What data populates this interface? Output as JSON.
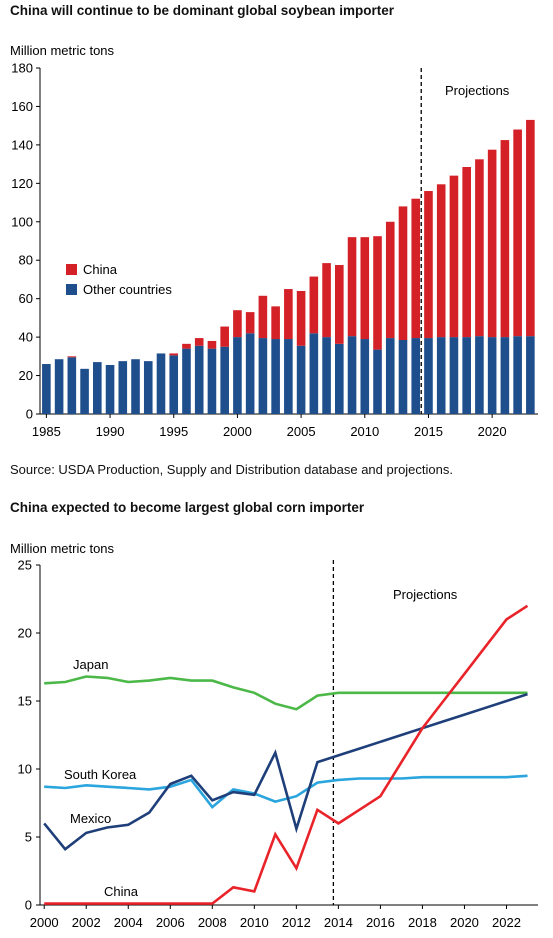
{
  "source_note": "Source: USDA Production, Supply and Distribution database and projections.",
  "colors": {
    "china": "#d42027",
    "other": "#1f4e8c",
    "japan": "#4cb848",
    "south_korea": "#2aa5dd",
    "mexico": "#1f3f7a",
    "china_line": "#e8232a"
  },
  "chart_data": [
    {
      "type": "bar",
      "stacked": true,
      "title": "China will continue to be dominant global soybean importer",
      "ylabel": "Million metric tons",
      "ylim": [
        0,
        180
      ],
      "yticks": [
        0,
        20,
        40,
        60,
        80,
        100,
        120,
        140,
        160,
        180
      ],
      "xticks": [
        "1985",
        "1990",
        "1995",
        "2000",
        "2005",
        "2010",
        "2015",
        "2020"
      ],
      "categories": [
        1985,
        1986,
        1987,
        1988,
        1989,
        1990,
        1991,
        1992,
        1993,
        1994,
        1995,
        1996,
        1997,
        1998,
        1999,
        2000,
        2001,
        2002,
        2003,
        2004,
        2005,
        2006,
        2007,
        2008,
        2009,
        2010,
        2011,
        2012,
        2013,
        2014,
        2015,
        2016,
        2017,
        2018,
        2019,
        2020,
        2021,
        2022,
        2023
      ],
      "series": [
        {
          "name": "Other countries",
          "values": [
            26,
            28.5,
            29.5,
            23.5,
            27,
            25.5,
            27.5,
            28.5,
            27.5,
            31.5,
            30.5,
            34,
            35.5,
            34,
            35,
            40,
            42,
            39.5,
            39,
            39,
            35.5,
            42,
            40,
            36.5,
            40.5,
            39,
            33.5,
            39.5,
            38.5,
            39.5,
            39.5,
            40,
            40,
            40,
            40.5,
            40,
            40,
            40.5,
            40.5
          ]
        },
        {
          "name": "China",
          "values": [
            0,
            0,
            0.5,
            0,
            0,
            0,
            0,
            0,
            0,
            0,
            1,
            2.5,
            4,
            4,
            10.5,
            14,
            11,
            22,
            17,
            26,
            28.5,
            29.5,
            38.5,
            41,
            51.5,
            53,
            59,
            60.5,
            69.5,
            72.5,
            76.5,
            79.5,
            84,
            88.5,
            92,
            97.5,
            102.5,
            107.5,
            112.5
          ]
        }
      ],
      "annotation": "Projections",
      "projection_start": 2014,
      "legend": [
        "China",
        "Other countries"
      ],
      "legend_position": "middle-left"
    },
    {
      "type": "line",
      "title": "China expected to become largest global corn importer",
      "ylabel": "Million metric tons",
      "ylim": [
        0,
        25
      ],
      "yticks": [
        0,
        5,
        10,
        15,
        20,
        25
      ],
      "xticks": [
        "2000",
        "2002",
        "2004",
        "2006",
        "2008",
        "2010",
        "2012",
        "2014",
        "2016",
        "2018",
        "2020",
        "2022"
      ],
      "x": [
        2000,
        2001,
        2002,
        2003,
        2004,
        2005,
        2006,
        2007,
        2008,
        2009,
        2010,
        2011,
        2012,
        2013,
        2014,
        2015,
        2016,
        2017,
        2018,
        2019,
        2020,
        2021,
        2022,
        2023
      ],
      "series": [
        {
          "name": "Japan",
          "values": [
            16.3,
            16.4,
            16.8,
            16.7,
            16.4,
            16.5,
            16.7,
            16.5,
            16.5,
            16.0,
            15.6,
            14.8,
            14.4,
            15.4,
            15.6,
            15.6,
            15.6,
            15.6,
            15.6,
            15.6,
            15.6,
            15.6,
            15.6,
            15.6
          ]
        },
        {
          "name": "South Korea",
          "values": [
            8.7,
            8.6,
            8.8,
            8.7,
            8.6,
            8.5,
            8.7,
            9.2,
            7.2,
            8.5,
            8.2,
            7.6,
            8.0,
            9.0,
            9.2,
            9.3,
            9.3,
            9.3,
            9.4,
            9.4,
            9.4,
            9.4,
            9.4,
            9.5
          ]
        },
        {
          "name": "Mexico",
          "values": [
            6.0,
            4.1,
            5.3,
            5.7,
            5.9,
            6.8,
            8.9,
            9.5,
            7.7,
            8.3,
            8.1,
            11.2,
            5.6,
            10.5,
            11.0,
            11.5,
            12.0,
            12.5,
            13.0,
            13.5,
            14.0,
            14.5,
            15.0,
            15.5
          ]
        },
        {
          "name": "China",
          "values": [
            0.1,
            0.1,
            0.1,
            0.1,
            0.1,
            0.1,
            0.1,
            0.1,
            0.1,
            1.3,
            1.0,
            5.2,
            2.7,
            7.0,
            6.0,
            7.0,
            8.0,
            10.5,
            13.0,
            15.0,
            17.0,
            19.0,
            21.0,
            22.0
          ]
        }
      ],
      "annotation": "Projections",
      "projection_start": 2014
    }
  ]
}
